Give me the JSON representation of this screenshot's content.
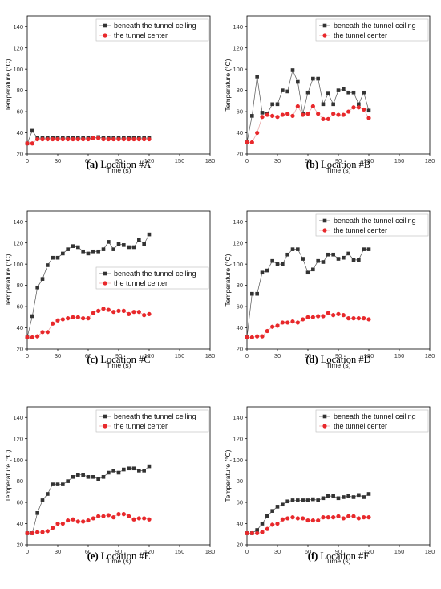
{
  "chart_data": [
    {
      "type": "line",
      "caption_label": "(a)",
      "caption_text": "Location #A",
      "xlabel": "Time (s)",
      "ylabel": "Temperature (°C)",
      "xlim": [
        0,
        180
      ],
      "ylim": [
        20,
        150
      ],
      "xticks": [
        0,
        30,
        60,
        90,
        120,
        150,
        180
      ],
      "yticks": [
        20,
        40,
        60,
        80,
        100,
        120,
        140
      ],
      "legend_position": "top-right",
      "x": [
        0,
        5,
        10,
        15,
        20,
        25,
        30,
        35,
        40,
        45,
        50,
        55,
        60,
        65,
        70,
        75,
        80,
        85,
        90,
        95,
        100,
        105,
        110,
        115,
        120
      ],
      "series": [
        {
          "name": "beneath the tunnel ceiling",
          "color": "#333333",
          "marker": "square",
          "values": [
            30,
            42,
            35,
            35,
            35,
            35,
            35,
            35,
            35,
            35,
            35,
            35,
            35,
            35,
            36,
            35,
            35,
            35,
            35,
            35,
            35,
            35,
            35,
            35,
            35
          ]
        },
        {
          "name": "the tunnel center",
          "color": "#e8282b",
          "marker": "circle",
          "values": [
            30,
            30,
            34,
            34,
            34,
            34,
            34,
            34,
            34,
            34,
            34,
            34,
            34,
            35,
            35,
            34,
            34,
            34,
            34,
            34,
            34,
            34,
            34,
            34,
            34
          ]
        }
      ]
    },
    {
      "type": "line",
      "caption_label": "(b)",
      "caption_text": "Location #B",
      "xlabel": "Time (s)",
      "ylabel": "Temperature (°C)",
      "xlim": [
        0,
        180
      ],
      "ylim": [
        20,
        150
      ],
      "xticks": [
        0,
        30,
        60,
        90,
        120,
        150,
        180
      ],
      "yticks": [
        20,
        40,
        60,
        80,
        100,
        120,
        140
      ],
      "legend_position": "top-right",
      "x": [
        0,
        5,
        10,
        15,
        20,
        25,
        30,
        35,
        40,
        45,
        50,
        55,
        60,
        65,
        70,
        75,
        80,
        85,
        90,
        95,
        100,
        105,
        110,
        115,
        120
      ],
      "series": [
        {
          "name": "beneath the tunnel ceiling",
          "color": "#333333",
          "marker": "square",
          "values": [
            31,
            56,
            93,
            59,
            58,
            67,
            67,
            80,
            79,
            99,
            88,
            58,
            78,
            91,
            91,
            67,
            77,
            67,
            80,
            81,
            78,
            78,
            67,
            78,
            61
          ]
        },
        {
          "name": "the tunnel center",
          "color": "#e8282b",
          "marker": "circle",
          "values": [
            31,
            31,
            40,
            55,
            57,
            56,
            55,
            57,
            58,
            56,
            65,
            57,
            58,
            65,
            58,
            53,
            53,
            58,
            57,
            57,
            60,
            64,
            64,
            62,
            54
          ]
        }
      ]
    },
    {
      "type": "line",
      "caption_label": "(c)",
      "caption_text": "Location #C",
      "xlabel": "Time (s)",
      "ylabel": "Temperature (°C)",
      "xlim": [
        0,
        180
      ],
      "ylim": [
        20,
        150
      ],
      "xticks": [
        0,
        30,
        60,
        90,
        120,
        150,
        180
      ],
      "yticks": [
        20,
        40,
        60,
        80,
        100,
        120,
        140
      ],
      "legend_position": "center-right",
      "x": [
        0,
        5,
        10,
        15,
        20,
        25,
        30,
        35,
        40,
        45,
        50,
        55,
        60,
        65,
        70,
        75,
        80,
        85,
        90,
        95,
        100,
        105,
        110,
        115,
        120
      ],
      "series": [
        {
          "name": "beneath the tunnel ceiling",
          "color": "#333333",
          "marker": "square",
          "values": [
            31,
            51,
            78,
            86,
            99,
            106,
            106,
            110,
            114,
            117,
            116,
            112,
            110,
            112,
            112,
            114,
            121,
            114,
            119,
            118,
            116,
            116,
            123,
            119,
            128
          ]
        },
        {
          "name": "the tunnel center",
          "color": "#e8282b",
          "marker": "circle",
          "values": [
            31,
            31,
            32,
            36,
            36,
            44,
            47,
            48,
            49,
            50,
            50,
            49,
            49,
            54,
            56,
            58,
            57,
            55,
            56,
            56,
            53,
            55,
            55,
            52,
            53
          ]
        }
      ]
    },
    {
      "type": "line",
      "caption_label": "(d)",
      "caption_text": "Location #D",
      "xlabel": "Time (s)",
      "ylabel": "Temperature (°C)",
      "xlim": [
        0,
        180
      ],
      "ylim": [
        20,
        150
      ],
      "xticks": [
        0,
        30,
        60,
        90,
        120,
        150,
        180
      ],
      "yticks": [
        20,
        40,
        60,
        80,
        100,
        120,
        140
      ],
      "legend_position": "top-right",
      "x": [
        0,
        5,
        10,
        15,
        20,
        25,
        30,
        35,
        40,
        45,
        50,
        55,
        60,
        65,
        70,
        75,
        80,
        85,
        90,
        95,
        100,
        105,
        110,
        115,
        120
      ],
      "series": [
        {
          "name": "beneath the tunnel ceiling",
          "color": "#333333",
          "marker": "square",
          "values": [
            31,
            72,
            72,
            92,
            94,
            103,
            100,
            100,
            109,
            114,
            114,
            105,
            92,
            95,
            103,
            102,
            109,
            109,
            105,
            106,
            110,
            104,
            104,
            114,
            114
          ]
        },
        {
          "name": "the tunnel center",
          "color": "#e8282b",
          "marker": "circle",
          "values": [
            31,
            31,
            32,
            32,
            37,
            41,
            42,
            45,
            45,
            46,
            45,
            48,
            50,
            50,
            51,
            51,
            54,
            52,
            53,
            52,
            49,
            49,
            49,
            49,
            48
          ]
        }
      ]
    },
    {
      "type": "line",
      "caption_label": "(e)",
      "caption_text": "Location #E",
      "xlabel": "Time (s)",
      "ylabel": "Temperature (°C)",
      "xlim": [
        0,
        180
      ],
      "ylim": [
        20,
        150
      ],
      "xticks": [
        0,
        30,
        60,
        90,
        120,
        150,
        180
      ],
      "yticks": [
        20,
        40,
        60,
        80,
        100,
        120,
        140
      ],
      "legend_position": "top-right",
      "x": [
        0,
        5,
        10,
        15,
        20,
        25,
        30,
        35,
        40,
        45,
        50,
        55,
        60,
        65,
        70,
        75,
        80,
        85,
        90,
        95,
        100,
        105,
        110,
        115,
        120
      ],
      "series": [
        {
          "name": "beneath the tunnel ceiling",
          "color": "#333333",
          "marker": "square",
          "values": [
            31,
            31,
            50,
            62,
            68,
            77,
            77,
            77,
            80,
            84,
            86,
            86,
            84,
            84,
            82,
            84,
            88,
            90,
            88,
            91,
            92,
            92,
            90,
            90,
            94
          ]
        },
        {
          "name": "the tunnel center",
          "color": "#e8282b",
          "marker": "circle",
          "values": [
            31,
            31,
            32,
            32,
            33,
            36,
            40,
            40,
            43,
            44,
            42,
            42,
            43,
            45,
            47,
            47,
            48,
            46,
            49,
            49,
            47,
            44,
            45,
            45,
            44
          ]
        }
      ]
    },
    {
      "type": "line",
      "caption_label": "(f)",
      "caption_text": "Location #F",
      "xlabel": "Time (s)",
      "ylabel": "Temperature (°C)",
      "xlim": [
        0,
        180
      ],
      "ylim": [
        20,
        150
      ],
      "xticks": [
        0,
        30,
        60,
        90,
        120,
        150,
        180
      ],
      "yticks": [
        20,
        40,
        60,
        80,
        100,
        120,
        140
      ],
      "legend_position": "top-right",
      "x": [
        0,
        5,
        10,
        15,
        20,
        25,
        30,
        35,
        40,
        45,
        50,
        55,
        60,
        65,
        70,
        75,
        80,
        85,
        90,
        95,
        100,
        105,
        110,
        115,
        120
      ],
      "series": [
        {
          "name": "beneath the tunnel ceiling",
          "color": "#333333",
          "marker": "square",
          "values": [
            31,
            31,
            34,
            40,
            47,
            52,
            56,
            58,
            61,
            62,
            62,
            62,
            62,
            63,
            62,
            64,
            66,
            66,
            64,
            65,
            66,
            65,
            67,
            65,
            68
          ]
        },
        {
          "name": "the tunnel center",
          "color": "#e8282b",
          "marker": "circle",
          "values": [
            31,
            31,
            31,
            32,
            35,
            39,
            40,
            44,
            45,
            46,
            45,
            45,
            43,
            43,
            43,
            46,
            46,
            46,
            47,
            45,
            47,
            47,
            45,
            46,
            46
          ]
        }
      ]
    }
  ]
}
